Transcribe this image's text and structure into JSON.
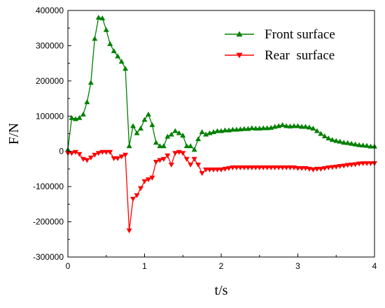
{
  "chart_data": {
    "type": "line",
    "xlabel": "t/s",
    "ylabel": "F/N",
    "xlim": [
      0,
      4
    ],
    "ylim": [
      -300000,
      400000
    ],
    "x_ticks": [
      0,
      1,
      2,
      3,
      4
    ],
    "y_ticks": [
      -300000,
      -200000,
      -100000,
      0,
      100000,
      200000,
      300000,
      400000
    ],
    "grid": false,
    "legend_position": "top-right",
    "series": [
      {
        "name": "Front surface",
        "color": "#008000",
        "marker": "triangle-up",
        "x": [
          0.0,
          0.05,
          0.1,
          0.15,
          0.2,
          0.25,
          0.3,
          0.35,
          0.4,
          0.45,
          0.5,
          0.55,
          0.6,
          0.65,
          0.7,
          0.75,
          0.8,
          0.85,
          0.9,
          0.95,
          1.0,
          1.05,
          1.1,
          1.15,
          1.2,
          1.25,
          1.3,
          1.35,
          1.4,
          1.45,
          1.5,
          1.55,
          1.6,
          1.65,
          1.7,
          1.75,
          1.8,
          1.85,
          1.9,
          1.95,
          2.0,
          2.05,
          2.1,
          2.15,
          2.2,
          2.25,
          2.3,
          2.35,
          2.4,
          2.45,
          2.5,
          2.55,
          2.6,
          2.65,
          2.7,
          2.75,
          2.8,
          2.85,
          2.9,
          2.95,
          3.0,
          3.05,
          3.1,
          3.15,
          3.2,
          3.25,
          3.3,
          3.35,
          3.4,
          3.45,
          3.5,
          3.55,
          3.6,
          3.65,
          3.7,
          3.75,
          3.8,
          3.85,
          3.9,
          3.95,
          4.0
        ],
        "y": [
          5000,
          95000,
          92000,
          95000,
          105000,
          140000,
          195000,
          320000,
          380000,
          378000,
          345000,
          305000,
          285000,
          270000,
          255000,
          235000,
          15000,
          72000,
          52000,
          65000,
          90000,
          105000,
          75000,
          25000,
          15000,
          15000,
          42000,
          48000,
          58000,
          52000,
          45000,
          15000,
          15000,
          5000,
          35000,
          55000,
          48000,
          52000,
          55000,
          58000,
          58000,
          60000,
          60000,
          62000,
          62000,
          63000,
          64000,
          64000,
          66000,
          65000,
          65000,
          66000,
          66000,
          67000,
          70000,
          72000,
          75000,
          72000,
          71000,
          72000,
          72000,
          70000,
          70000,
          68000,
          65000,
          58000,
          50000,
          43000,
          37000,
          33000,
          30000,
          28000,
          25000,
          24000,
          22000,
          20000,
          18000,
          17000,
          16000,
          14000,
          14000
        ]
      },
      {
        "name": "Rear  surface",
        "color": "#ff0000",
        "marker": "triangle-down",
        "x": [
          0.0,
          0.05,
          0.1,
          0.15,
          0.2,
          0.25,
          0.3,
          0.35,
          0.4,
          0.45,
          0.5,
          0.55,
          0.6,
          0.65,
          0.7,
          0.75,
          0.8,
          0.85,
          0.9,
          0.95,
          1.0,
          1.05,
          1.1,
          1.15,
          1.2,
          1.25,
          1.3,
          1.35,
          1.4,
          1.45,
          1.5,
          1.55,
          1.6,
          1.65,
          1.7,
          1.75,
          1.8,
          1.85,
          1.9,
          1.95,
          2.0,
          2.05,
          2.1,
          2.15,
          2.2,
          2.25,
          2.3,
          2.35,
          2.4,
          2.45,
          2.5,
          2.55,
          2.6,
          2.65,
          2.7,
          2.75,
          2.8,
          2.85,
          2.9,
          2.95,
          3.0,
          3.05,
          3.1,
          3.15,
          3.2,
          3.25,
          3.3,
          3.35,
          3.4,
          3.45,
          3.5,
          3.55,
          3.6,
          3.65,
          3.7,
          3.75,
          3.8,
          3.85,
          3.9,
          3.95,
          4.0
        ],
        "y": [
          -5000,
          -5000,
          -2000,
          -8000,
          -22000,
          -25000,
          -18000,
          -10000,
          -5000,
          -2000,
          -2000,
          -2000,
          -20000,
          -20000,
          -15000,
          -10000,
          -225000,
          -135000,
          -125000,
          -105000,
          -85000,
          -80000,
          -75000,
          -30000,
          -25000,
          -22000,
          -12000,
          -38000,
          -5000,
          -2000,
          -5000,
          -22000,
          -38000,
          -22000,
          -38000,
          -62000,
          -52000,
          -52000,
          -52000,
          -52000,
          -52000,
          -50000,
          -48000,
          -46000,
          -46000,
          -46000,
          -46000,
          -46000,
          -46000,
          -46000,
          -46000,
          -46000,
          -46000,
          -46000,
          -46000,
          -46000,
          -46000,
          -46000,
          -46000,
          -46000,
          -48000,
          -48000,
          -48000,
          -50000,
          -52000,
          -50000,
          -50000,
          -48000,
          -46000,
          -45000,
          -44000,
          -42000,
          -41000,
          -39000,
          -38000,
          -37000,
          -35000,
          -34000,
          -34000,
          -34000,
          -34000
        ]
      }
    ]
  }
}
